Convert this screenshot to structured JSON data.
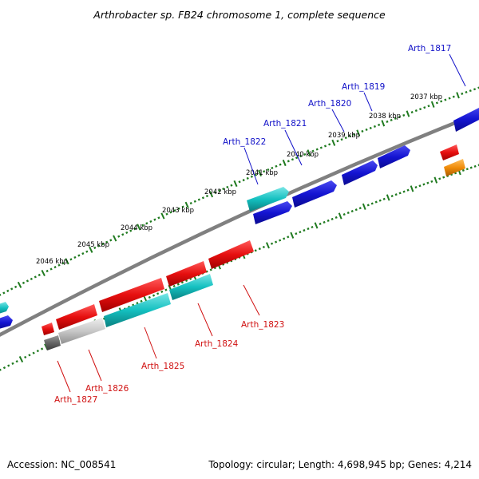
{
  "title": "Arthrobacter sp. FB24 chromosome 1, complete sequence",
  "accession": "Accession: NC_008541",
  "summary": "Topology: circular; Length: 4,698,945 bp; Genes: 4,214",
  "colors": {
    "blue": "#1414d2",
    "red": "#e60f0f",
    "cyan": "#14c0c0",
    "gray": "#c8c8c8",
    "darkgray": "#666666",
    "orange": "#f08c0a",
    "backbone": "#808080",
    "tick": "#1f7a1f",
    "label_top": "#1010c8",
    "label_bottom": "#d01010"
  },
  "kbp_labels": [
    "2037 kbp",
    "2038 kbp",
    "2039 kbp",
    "2040 kbp",
    "2041 kbp",
    "2042 kbp",
    "2043 kbp",
    "2044 kbp",
    "2045 kbp",
    "2046 kbp"
  ],
  "genes_top": [
    "Arth_1817",
    "Arth_1819",
    "Arth_1820",
    "Arth_1821",
    "Arth_1822"
  ],
  "genes_bottom": [
    "Arth_1823",
    "Arth_1824",
    "Arth_1825",
    "Arth_1826",
    "Arth_1827"
  ]
}
